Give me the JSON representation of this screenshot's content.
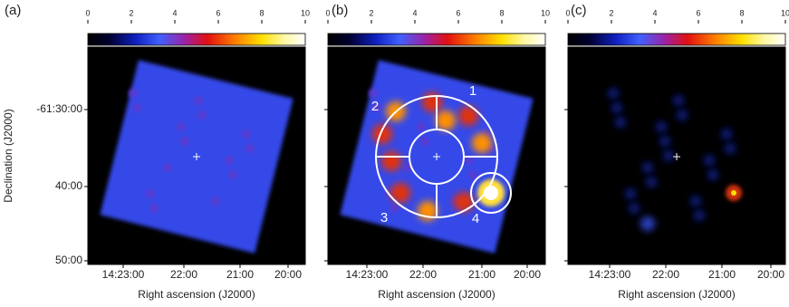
{
  "chart_data": [
    {
      "type": "image",
      "title": "(a)",
      "colorbar_lim": [
        0,
        10
      ],
      "colorbar_ticks": [
        0,
        2,
        4,
        6,
        8,
        10
      ],
      "xlabel": "Right ascension (J2000)",
      "ylabel": "Declination (J2000)",
      "xtick_labels": [
        "14:23:00",
        "22:00",
        "21:00",
        "20:00"
      ],
      "ytick_labels": [
        "-61:30:00",
        "40:00",
        "50:00"
      ]
    },
    {
      "type": "image",
      "title": "(b)",
      "colorbar_lim": [
        0,
        10
      ],
      "colorbar_ticks": [
        0,
        2,
        4,
        6,
        8,
        10
      ],
      "xlabel": "Right ascension (J2000)",
      "xtick_labels": [
        "14:23:00",
        "22:00",
        "21:00",
        "20:00"
      ],
      "annotations": [
        "1",
        "2",
        "3",
        "4"
      ]
    },
    {
      "type": "image",
      "title": "(c)",
      "colorbar_lim": [
        0,
        10
      ],
      "colorbar_ticks": [
        0,
        2,
        4,
        6,
        8,
        10
      ],
      "xlabel": "Right ascension (J2000)",
      "xtick_labels": [
        "14:23:00",
        "22:00",
        "21:00",
        "20:00"
      ]
    }
  ]
}
